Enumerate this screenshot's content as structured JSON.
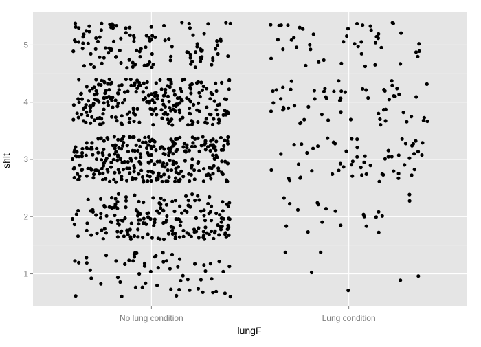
{
  "chart_data": {
    "type": "scatter",
    "title": "",
    "xlabel": "lungF",
    "ylabel": "shlt",
    "categories": [
      "No lung condition",
      "Lung condition"
    ],
    "yticks": [
      1,
      2,
      3,
      4,
      5
    ],
    "ylim": [
      0.43,
      5.57
    ],
    "grid": true,
    "legend": "none",
    "jitter": 0.4,
    "point_color": "#000000",
    "panel_color": "#e5e5e5",
    "grid_color": "#ffffff",
    "series": [
      {
        "category": "No lung condition",
        "levels": [
          {
            "y": 1,
            "count": 60
          },
          {
            "y": 2,
            "count": 190
          },
          {
            "y": 3,
            "count": 300
          },
          {
            "y": 4,
            "count": 250
          },
          {
            "y": 5,
            "count": 120
          }
        ]
      },
      {
        "category": "Lung condition",
        "levels": [
          {
            "y": 1,
            "count": 6
          },
          {
            "y": 2,
            "count": 20
          },
          {
            "y": 3,
            "count": 58
          },
          {
            "y": 4,
            "count": 60
          },
          {
            "y": 5,
            "count": 45
          }
        ]
      }
    ]
  }
}
